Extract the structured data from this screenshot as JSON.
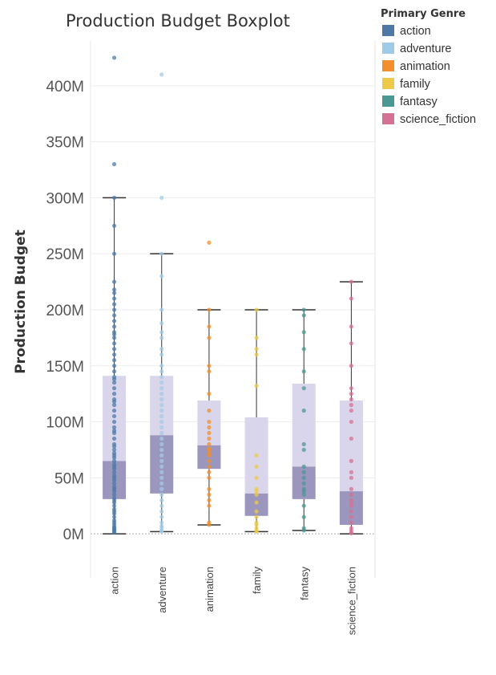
{
  "chart_data": {
    "type": "boxplot",
    "title": "Production Budget Boxplot",
    "ylabel": "Production Budget",
    "xlabel": "",
    "ylim": [
      -25000000,
      440000000
    ],
    "yticks": [
      {
        "value": 0,
        "label": "0M"
      },
      {
        "value": 50000000,
        "label": "50M"
      },
      {
        "value": 100000000,
        "label": "100M"
      },
      {
        "value": 150000000,
        "label": "150M"
      },
      {
        "value": 200000000,
        "label": "200M"
      },
      {
        "value": 250000000,
        "label": "250M"
      },
      {
        "value": 300000000,
        "label": "300M"
      },
      {
        "value": 350000000,
        "label": "350M"
      },
      {
        "value": 400000000,
        "label": "400M"
      }
    ],
    "categories": [
      "action",
      "adventure",
      "animation",
      "family",
      "fantasy",
      "science_fiction"
    ],
    "legend": {
      "title": "Primary Genre",
      "placement": "top-right",
      "items": [
        {
          "label": "action",
          "color": "#4e79a7"
        },
        {
          "label": "adventure",
          "color": "#a0cbe8"
        },
        {
          "label": "animation",
          "color": "#f28e2b"
        },
        {
          "label": "family",
          "color": "#edc948"
        },
        {
          "label": "fantasy",
          "color": "#499894"
        },
        {
          "label": "science_fiction",
          "color": "#d37295"
        }
      ]
    },
    "box_colors": {
      "upper": "#d9d5ea",
      "lower": "#9b96bd",
      "whisker": "#333333"
    },
    "series": [
      {
        "category": "action",
        "whisker_low": 0,
        "q1": 31000000,
        "median": 65000000,
        "q3": 141000000,
        "whisker_high": 300000000,
        "points": [
          425000000,
          330000000,
          300000000,
          275000000,
          250000000,
          225000000,
          218000000,
          215000000,
          210000000,
          205000000,
          200000000,
          195000000,
          190000000,
          185000000,
          180000000,
          178000000,
          175000000,
          170000000,
          165000000,
          160000000,
          155000000,
          150000000,
          145000000,
          140000000,
          138000000,
          135000000,
          130000000,
          125000000,
          120000000,
          118000000,
          115000000,
          110000000,
          105000000,
          100000000,
          95000000,
          92000000,
          90000000,
          85000000,
          80000000,
          78000000,
          75000000,
          72000000,
          70000000,
          68000000,
          65000000,
          62000000,
          60000000,
          58000000,
          55000000,
          52000000,
          50000000,
          48000000,
          45000000,
          42000000,
          40000000,
          38000000,
          35000000,
          32000000,
          30000000,
          28000000,
          25000000,
          22000000,
          20000000,
          18000000,
          15000000,
          12000000,
          10000000,
          8000000,
          6000000,
          5000000,
          4000000,
          3000000,
          2000000,
          1000000
        ]
      },
      {
        "category": "adventure",
        "whisker_low": 2000000,
        "q1": 36000000,
        "median": 88000000,
        "q3": 141000000,
        "whisker_high": 250000000,
        "points": [
          410000000,
          300000000,
          250000000,
          230000000,
          200000000,
          188000000,
          180000000,
          175000000,
          165000000,
          160000000,
          150000000,
          145000000,
          140000000,
          135000000,
          130000000,
          125000000,
          120000000,
          115000000,
          110000000,
          105000000,
          100000000,
          95000000,
          90000000,
          85000000,
          80000000,
          75000000,
          70000000,
          65000000,
          60000000,
          55000000,
          50000000,
          45000000,
          40000000,
          35000000,
          30000000,
          25000000,
          20000000,
          15000000,
          10000000,
          7000000,
          5000000,
          3000000,
          2000000
        ]
      },
      {
        "category": "animation",
        "whisker_low": 8000000,
        "q1": 58000000,
        "median": 79000000,
        "q3": 119000000,
        "whisker_high": 200000000,
        "points": [
          260000000,
          200000000,
          185000000,
          175000000,
          150000000,
          145000000,
          125000000,
          110000000,
          100000000,
          95000000,
          90000000,
          85000000,
          80000000,
          76000000,
          75000000,
          72000000,
          70000000,
          65000000,
          60000000,
          55000000,
          50000000,
          40000000,
          35000000,
          30000000,
          25000000,
          10000000,
          8000000
        ]
      },
      {
        "category": "family",
        "whisker_low": 2000000,
        "q1": 16000000,
        "median": 36000000,
        "q3": 104000000,
        "whisker_high": 200000000,
        "points": [
          200000000,
          175000000,
          165000000,
          160000000,
          132000000,
          70000000,
          60000000,
          50000000,
          40000000,
          38000000,
          35000000,
          28000000,
          20000000,
          15000000,
          10000000,
          8000000,
          5000000,
          3000000,
          2000000
        ]
      },
      {
        "category": "fantasy",
        "whisker_low": 3000000,
        "q1": 31000000,
        "median": 60000000,
        "q3": 134000000,
        "whisker_high": 200000000,
        "points": [
          200000000,
          195000000,
          180000000,
          165000000,
          145000000,
          130000000,
          110000000,
          80000000,
          75000000,
          60000000,
          55000000,
          50000000,
          45000000,
          40000000,
          38000000,
          35000000,
          25000000,
          15000000,
          5000000,
          3000000
        ]
      },
      {
        "category": "science_fiction",
        "whisker_low": 0,
        "q1": 8000000,
        "median": 38000000,
        "q3": 119000000,
        "whisker_high": 225000000,
        "points": [
          225000000,
          210000000,
          185000000,
          170000000,
          150000000,
          130000000,
          125000000,
          120000000,
          115000000,
          110000000,
          100000000,
          85000000,
          65000000,
          55000000,
          50000000,
          40000000,
          35000000,
          30000000,
          27000000,
          25000000,
          20000000,
          15000000,
          10000000,
          5000000,
          3000000,
          1000000,
          500000
        ]
      }
    ]
  }
}
